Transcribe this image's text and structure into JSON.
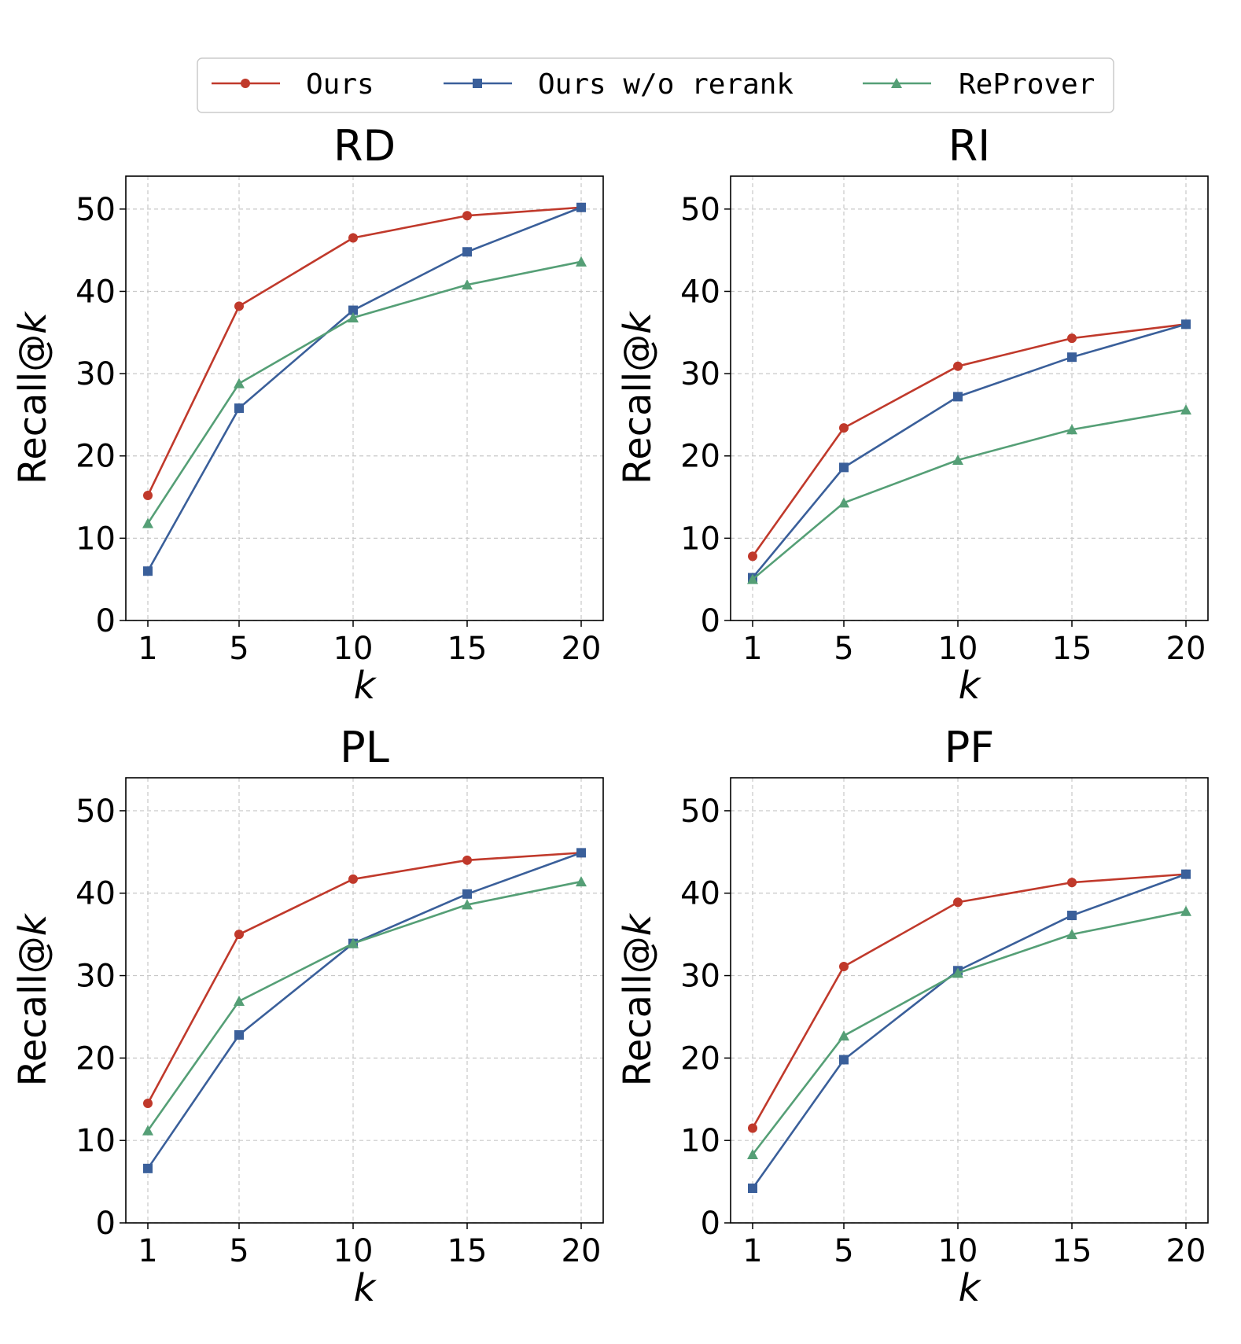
{
  "legend": [
    {
      "label": "Ours",
      "color": "#c0392b",
      "marker": "circle"
    },
    {
      "label": "Ours w/o rerank",
      "color": "#3a5f9a",
      "marker": "square"
    },
    {
      "label": "ReProver",
      "color": "#559f76",
      "marker": "triangle"
    }
  ],
  "chart_data": [
    {
      "type": "line",
      "title": "RD",
      "xlabel_prefix": "k",
      "ylabel_prefix": "Recall@",
      "ylabel_suffix": "k",
      "x": [
        1,
        5,
        10,
        15,
        20
      ],
      "xticks": [
        "1",
        "5",
        "10",
        "15",
        "20"
      ],
      "ylim": [
        0,
        54
      ],
      "yticks": [
        "0",
        "10",
        "20",
        "30",
        "40",
        "50"
      ],
      "grid": true,
      "series": [
        {
          "name": "Ours",
          "values": [
            15.2,
            38.2,
            46.5,
            49.2,
            50.2
          ]
        },
        {
          "name": "Ours w/o rerank",
          "values": [
            6.0,
            25.8,
            37.7,
            44.8,
            50.2
          ]
        },
        {
          "name": "ReProver",
          "values": [
            11.8,
            28.8,
            36.8,
            40.8,
            43.6
          ]
        }
      ]
    },
    {
      "type": "line",
      "title": "RI",
      "xlabel_prefix": "k",
      "ylabel_prefix": "Recall@",
      "ylabel_suffix": "k",
      "x": [
        1,
        5,
        10,
        15,
        20
      ],
      "xticks": [
        "1",
        "5",
        "10",
        "15",
        "20"
      ],
      "ylim": [
        0,
        54
      ],
      "yticks": [
        "0",
        "10",
        "20",
        "30",
        "40",
        "50"
      ],
      "grid": true,
      "series": [
        {
          "name": "Ours",
          "values": [
            7.8,
            23.4,
            30.9,
            34.3,
            36.0
          ]
        },
        {
          "name": "Ours w/o rerank",
          "values": [
            5.2,
            18.6,
            27.2,
            32.0,
            36.0
          ]
        },
        {
          "name": "ReProver",
          "values": [
            5.0,
            14.3,
            19.5,
            23.2,
            25.6
          ]
        }
      ]
    },
    {
      "type": "line",
      "title": "PL",
      "xlabel_prefix": "k",
      "ylabel_prefix": "Recall@",
      "ylabel_suffix": "k",
      "x": [
        1,
        5,
        10,
        15,
        20
      ],
      "xticks": [
        "1",
        "5",
        "10",
        "15",
        "20"
      ],
      "ylim": [
        0,
        54
      ],
      "yticks": [
        "0",
        "10",
        "20",
        "30",
        "40",
        "50"
      ],
      "grid": true,
      "series": [
        {
          "name": "Ours",
          "values": [
            14.5,
            35.0,
            41.7,
            44.0,
            44.9
          ]
        },
        {
          "name": "Ours w/o rerank",
          "values": [
            6.6,
            22.8,
            33.9,
            39.9,
            44.9
          ]
        },
        {
          "name": "ReProver",
          "values": [
            11.2,
            26.9,
            33.9,
            38.6,
            41.4
          ]
        }
      ]
    },
    {
      "type": "line",
      "title": "PF",
      "xlabel_prefix": "k",
      "ylabel_prefix": "Recall@",
      "ylabel_suffix": "k",
      "x": [
        1,
        5,
        10,
        15,
        20
      ],
      "xticks": [
        "1",
        "5",
        "10",
        "15",
        "20"
      ],
      "ylim": [
        0,
        54
      ],
      "yticks": [
        "0",
        "10",
        "20",
        "30",
        "40",
        "50"
      ],
      "grid": true,
      "series": [
        {
          "name": "Ours",
          "values": [
            11.5,
            31.1,
            38.9,
            41.3,
            42.3
          ]
        },
        {
          "name": "Ours w/o rerank",
          "values": [
            4.2,
            19.8,
            30.6,
            37.3,
            42.3
          ]
        },
        {
          "name": "ReProver",
          "values": [
            8.3,
            22.7,
            30.3,
            35.0,
            37.8
          ]
        }
      ]
    }
  ]
}
